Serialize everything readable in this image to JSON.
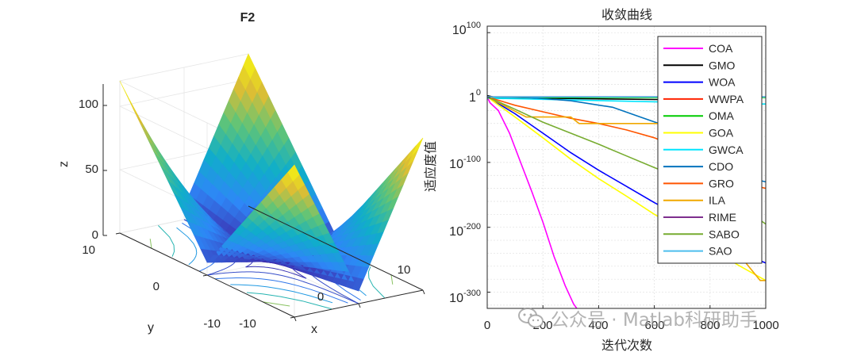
{
  "chart_data": [
    {
      "type": "surface3d",
      "title": "F2",
      "xlabel": "x",
      "ylabel": "y",
      "zlabel": "z",
      "x_ticks": [
        -10,
        10
      ],
      "y_ticks": [
        -10,
        0,
        10
      ],
      "z_ticks": [
        0,
        50,
        100
      ],
      "x_tick_labels": [
        "-10",
        "10"
      ],
      "y_tick_labels": [
        "-10",
        "0",
        "10"
      ],
      "z_tick_labels": [
        "0",
        "50",
        "100"
      ],
      "xlim": [
        -10,
        10
      ],
      "ylim": [
        -10,
        10
      ],
      "zlim": [
        0,
        120
      ],
      "function": "z = |x| + |y| + |x|*|y|",
      "contours_on_floor": true,
      "colormap": "parula"
    },
    {
      "type": "line",
      "title": "收敛曲线",
      "xlabel": "迭代次数",
      "ylabel": "适应度值",
      "yscale": "log",
      "xlim": [
        0,
        1000
      ],
      "ylim_exponent": [
        -325,
        110
      ],
      "x_ticks": [
        0,
        200,
        400,
        600,
        800,
        1000
      ],
      "x_tick_labels": [
        "0",
        "200",
        "400",
        "600",
        "800",
        "1000"
      ],
      "y_tick_exponents": [
        -300,
        -200,
        -100,
        0,
        100
      ],
      "y_tick_labels": [
        {
          "base": "10",
          "exp": "-300"
        },
        {
          "base": "10",
          "exp": "-200"
        },
        {
          "base": "10",
          "exp": "-100"
        },
        {
          "base": "1",
          "exp": "0"
        },
        {
          "base": "10",
          "exp": "100"
        }
      ],
      "grid": true,
      "legend_position": "top-right",
      "series": [
        {
          "name": "COA",
          "color": "#ff00ff",
          "points": [
            [
              0,
              1
            ],
            [
              10,
              -8
            ],
            [
              40,
              -20
            ],
            [
              80,
              -55
            ],
            [
              120,
              -100
            ],
            [
              160,
              -145
            ],
            [
              200,
              -192
            ],
            [
              240,
              -245
            ],
            [
              280,
              -290
            ],
            [
              310,
              -318
            ],
            [
              330,
              -330
            ]
          ]
        },
        {
          "name": "GMO",
          "color": "#000000",
          "points": [
            [
              0,
              3
            ],
            [
              20,
              1
            ],
            [
              200,
              -1
            ],
            [
              400,
              -2
            ],
            [
              600,
              -3
            ],
            [
              800,
              -4
            ],
            [
              900,
              -15
            ],
            [
              960,
              -100
            ],
            [
              985,
              -140
            ]
          ]
        },
        {
          "name": "WOA",
          "color": "#0000ff",
          "points": [
            [
              0,
              1
            ],
            [
              100,
              -25
            ],
            [
              200,
              -55
            ],
            [
              300,
              -85
            ],
            [
              400,
              -112
            ],
            [
              500,
              -137
            ],
            [
              600,
              -162
            ],
            [
              700,
              -185
            ],
            [
              800,
              -210
            ],
            [
              900,
              -237
            ],
            [
              1000,
              -255
            ]
          ]
        },
        {
          "name": "WWPA",
          "color": "#ff2200",
          "points": [
            [
              0,
              1
            ],
            [
              1000,
              1
            ]
          ]
        },
        {
          "name": "OMA",
          "color": "#00cc00",
          "points": [
            [
              0,
              0
            ],
            [
              1000,
              0
            ]
          ]
        },
        {
          "name": "GOA",
          "color": "#ffff00",
          "points": [
            [
              0,
              1
            ],
            [
              100,
              -30
            ],
            [
              200,
              -62
            ],
            [
              300,
              -95
            ],
            [
              400,
              -125
            ],
            [
              500,
              -152
            ],
            [
              600,
              -180
            ],
            [
              700,
              -205
            ],
            [
              800,
              -232
            ],
            [
              900,
              -258
            ],
            [
              1000,
              -282
            ]
          ]
        },
        {
          "name": "GWCA",
          "color": "#00e5ff",
          "points": [
            [
              0,
              -1
            ],
            [
              960,
              -10
            ],
            [
              1000,
              -10
            ]
          ]
        },
        {
          "name": "CDO",
          "color": "#0072bd",
          "points": [
            [
              0,
              1
            ],
            [
              150,
              0
            ],
            [
              300,
              -5
            ],
            [
              450,
              -15
            ],
            [
              550,
              -30
            ],
            [
              650,
              -45
            ],
            [
              750,
              -65
            ],
            [
              850,
              -90
            ],
            [
              950,
              -125
            ],
            [
              1000,
              -130
            ]
          ]
        },
        {
          "name": "GRO",
          "color": "#ff5500",
          "points": [
            [
              0,
              1
            ],
            [
              100,
              -12
            ],
            [
              200,
              -22
            ],
            [
              300,
              -32
            ],
            [
              400,
              -40
            ],
            [
              500,
              -50
            ],
            [
              600,
              -62
            ],
            [
              700,
              -80
            ],
            [
              800,
              -100
            ],
            [
              900,
              -130
            ],
            [
              1000,
              -140
            ]
          ]
        },
        {
          "name": "ILA",
          "color": "#f0a800",
          "points": [
            [
              0,
              1
            ],
            [
              140,
              -30
            ],
            [
              300,
              -30
            ],
            [
              330,
              -40
            ],
            [
              500,
              -40
            ],
            [
              700,
              -40
            ],
            [
              800,
              -40
            ],
            [
              900,
              -240
            ],
            [
              980,
              -282
            ],
            [
              1000,
              -282
            ]
          ]
        },
        {
          "name": "RIME",
          "color": "#7e2f8e",
          "points": [
            [
              0,
              1
            ],
            [
              1000,
              1
            ]
          ]
        },
        {
          "name": "SABO",
          "color": "#77ac30",
          "points": [
            [
              0,
              1
            ],
            [
              100,
              -18
            ],
            [
              200,
              -38
            ],
            [
              300,
              -55
            ],
            [
              400,
              -72
            ],
            [
              500,
              -90
            ],
            [
              600,
              -108
            ],
            [
              700,
              -125
            ],
            [
              800,
              -145
            ],
            [
              900,
              -165
            ],
            [
              1000,
              -195
            ]
          ]
        },
        {
          "name": "SAO",
          "color": "#4dbeee",
          "points": [
            [
              0,
              1
            ],
            [
              1000,
              1
            ]
          ]
        }
      ]
    }
  ],
  "watermark": {
    "text": "公众号 · Matlab科研助手"
  }
}
